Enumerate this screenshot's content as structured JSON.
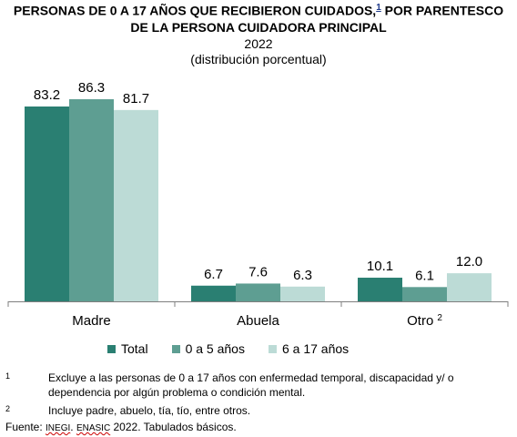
{
  "header": {
    "title_line1": "PERSONAS DE 0 A 17 AÑOS QUE RECIBIERON CUIDADOS,",
    "title_sup": "1",
    "title_line1_end": " POR PARENTESCO",
    "title_line2": "DE LA PERSONA CUIDADORA PRINCIPAL",
    "year": "2022",
    "subtitle": "(distribución porcentual)"
  },
  "chart_data": {
    "type": "bar",
    "categories": [
      "Madre",
      "Abuela",
      "Otro"
    ],
    "category_superscripts": [
      "",
      "",
      "2"
    ],
    "series": [
      {
        "name": "Total",
        "color": "#2a7f72",
        "values": [
          83.2,
          6.7,
          10.1
        ],
        "labels": [
          "83.2",
          "6.7",
          "10.1"
        ]
      },
      {
        "name": "0 a 5 años",
        "color": "#5e9e92",
        "values": [
          86.3,
          7.6,
          6.1
        ],
        "labels": [
          "86.3",
          "7.6",
          "6.1"
        ]
      },
      {
        "name": "6 a 17 años",
        "color": "#bcdbd6",
        "values": [
          81.7,
          6.3,
          12.0
        ],
        "labels": [
          "81.7",
          "6.3",
          "12.0"
        ]
      }
    ],
    "ylim": [
      0,
      86.3
    ],
    "grid": false,
    "legend_position": "bottom"
  },
  "legend": {
    "items": [
      {
        "label": "Total",
        "color": "#2a7f72"
      },
      {
        "label": "0 a 5 años",
        "color": "#5e9e92"
      },
      {
        "label": "6 a 17 años",
        "color": "#bcdbd6"
      }
    ]
  },
  "notes": {
    "n1_num": "1",
    "n1_text": "Excluye a las personas de 0 a 17 años con enfermedad temporal, discapacidad y/ o dependencia por algún problema o condición mental.",
    "n2_num": "2",
    "n2_text": "Incluye padre, abuelo, tía, tío, entre otros.",
    "source_prefix": "Fuente: ",
    "source_inegi": "INEGI",
    "source_sep": ". ",
    "source_enasic": "ENASIC",
    "source_suffix": " 2022. Tabulados básicos."
  }
}
